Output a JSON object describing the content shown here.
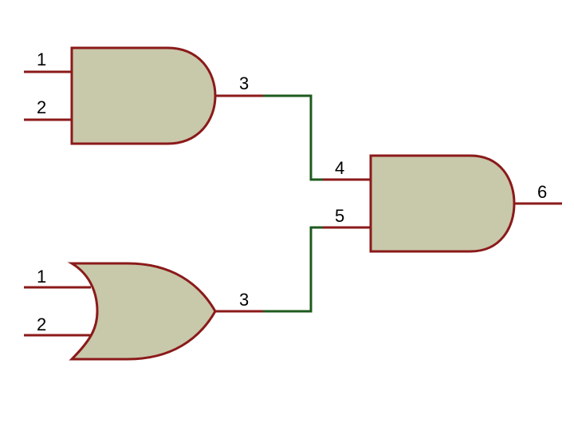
{
  "colors": {
    "background": "#ffffff",
    "gate_fill": "#c8c8aa",
    "gate_stroke": "#8b1a1a",
    "pin_stroke": "#8b1a1a",
    "wire": "#1e5a1e",
    "label": "#000000"
  },
  "gates": [
    {
      "id": "and-gate-1",
      "type": "AND",
      "inputs": [
        "1",
        "2"
      ],
      "output": "3"
    },
    {
      "id": "or-gate-1",
      "type": "OR",
      "inputs": [
        "1",
        "2"
      ],
      "output": "3"
    },
    {
      "id": "and-gate-2",
      "type": "AND",
      "inputs": [
        "4",
        "5"
      ],
      "output": "6"
    }
  ],
  "wires": [
    {
      "from": "and-gate-1.3",
      "to": "and-gate-2.4"
    },
    {
      "from": "or-gate-1.3",
      "to": "and-gate-2.5"
    }
  ]
}
